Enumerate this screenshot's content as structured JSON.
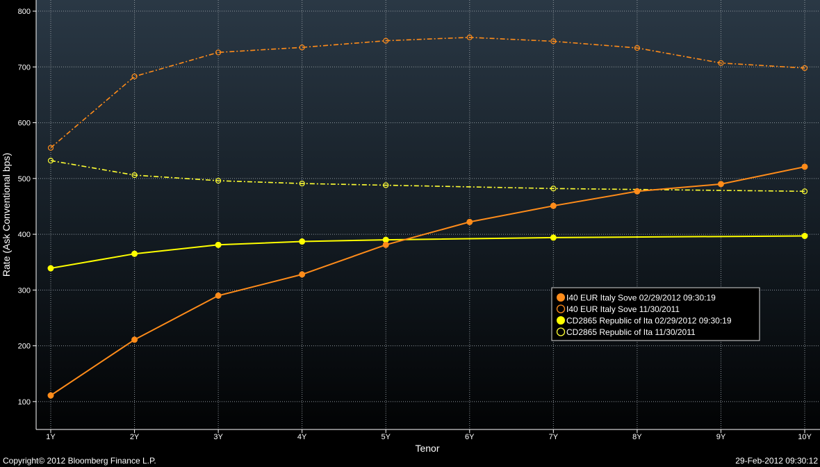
{
  "footer": {
    "copyright": "Copyright© 2012 Bloomberg Finance L.P.",
    "timestamp": "29-Feb-2012 09:30:12"
  },
  "chart_data": {
    "type": "line",
    "xlabel": "Tenor",
    "ylabel": "Rate  (Ask Conventional bps)",
    "categories": [
      "1Y",
      "2Y",
      "3Y",
      "4Y",
      "5Y",
      "6Y",
      "7Y",
      "8Y",
      "9Y",
      "10Y"
    ],
    "ylim": [
      50,
      820
    ],
    "yticks": [
      100,
      200,
      300,
      400,
      500,
      600,
      700,
      800
    ],
    "grid": true,
    "legend_position": "bottom-right",
    "series": [
      {
        "name": "I40  EUR Italy Sove 11/30/2011",
        "color": "#ff8c1a",
        "dashed": true,
        "marker": "hollow",
        "values": [
          555,
          683,
          726,
          735,
          747,
          753,
          746,
          734,
          707,
          698
        ]
      },
      {
        "name": "CD2865 Republic of Ita 11/30/2011",
        "color": "#ffff33",
        "dashed": true,
        "marker": "hollow",
        "values": [
          532,
          506,
          496,
          491,
          488,
          null,
          482,
          null,
          null,
          477
        ]
      },
      {
        "name": "CD2865 Republic of Ita 02/29/2012 09:30:19",
        "color": "#ffff00",
        "dashed": false,
        "marker": "filled",
        "values": [
          339,
          365,
          381,
          387,
          390,
          null,
          394,
          null,
          null,
          397
        ]
      },
      {
        "name": "I40  EUR Italy Sove 02/29/2012 09:30:19",
        "color": "#ff8c1a",
        "dashed": false,
        "marker": "filled",
        "values": [
          111,
          211,
          290,
          328,
          381,
          422,
          451,
          477,
          490,
          521
        ]
      }
    ],
    "legend_order": [
      3,
      0,
      2,
      1
    ]
  }
}
